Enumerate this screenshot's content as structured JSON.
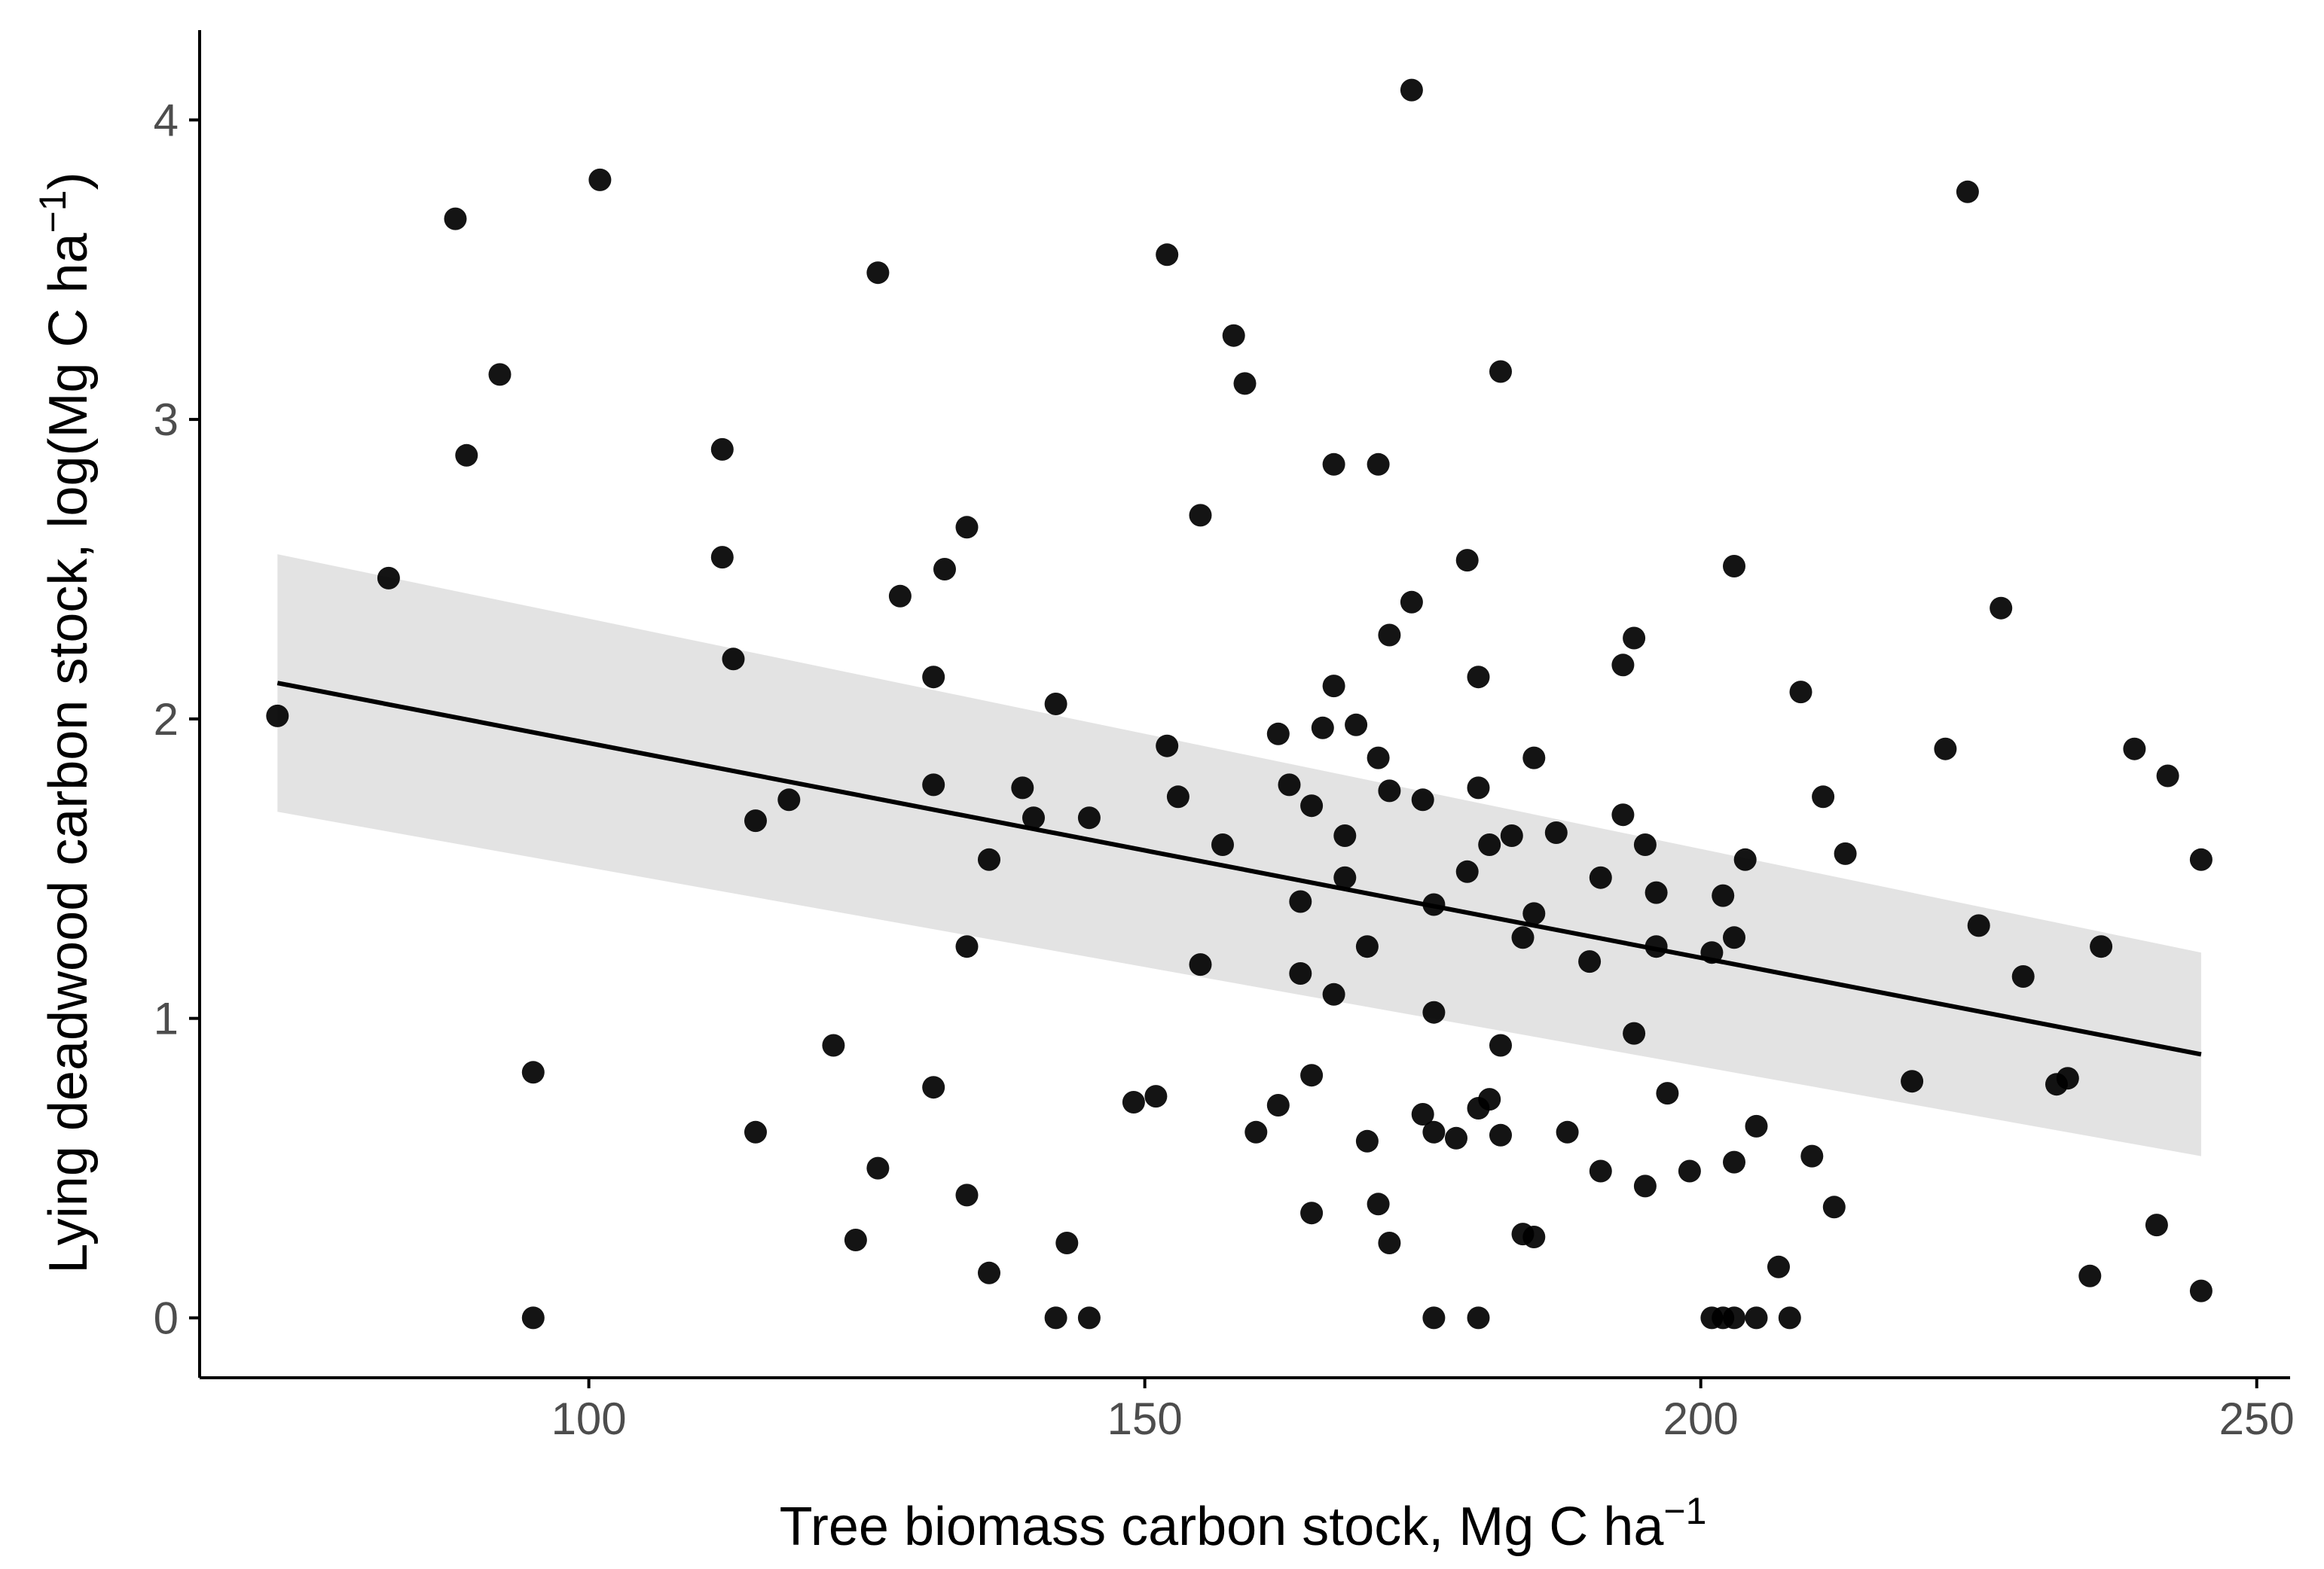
{
  "chart_data": {
    "type": "scatter",
    "title": "",
    "xlabel": "Tree biomass carbon stock, Mg C ha",
    "xlabel_sup": "−1",
    "ylabel": "Lying deadwood carbon stock, log(Mg C ha",
    "ylabel_sup": "−1",
    "ylabel_close": ")",
    "xlim": [
      65,
      253
    ],
    "ylim": [
      -0.2,
      4.3
    ],
    "xticks": [
      100,
      150,
      200,
      250
    ],
    "xtick_labels": [
      "100",
      "150",
      "200",
      "250"
    ],
    "yticks": [
      0,
      1,
      2,
      3,
      4
    ],
    "ytick_labels": [
      "0",
      "1",
      "2",
      "3",
      "4"
    ],
    "grid": false,
    "colors": {
      "points": "#000000",
      "line": "#000000",
      "band": "#d9d9d9",
      "axis": "#000000",
      "tick_text": "#4d4d4d"
    },
    "fit": {
      "x": [
        72,
        245
      ],
      "y": [
        2.12,
        0.88
      ],
      "ci_lower": [
        1.69,
        0.54
      ],
      "ci_upper": [
        2.55,
        1.22
      ]
    },
    "points": [
      [
        72,
        2.01
      ],
      [
        82,
        2.47
      ],
      [
        88,
        3.67
      ],
      [
        89,
        2.88
      ],
      [
        92,
        3.15
      ],
      [
        95,
        0.82
      ],
      [
        95,
        0.0
      ],
      [
        101,
        3.8
      ],
      [
        112,
        2.9
      ],
      [
        112,
        2.54
      ],
      [
        113,
        2.2
      ],
      [
        115,
        1.66
      ],
      [
        115,
        0.62
      ],
      [
        118,
        1.73
      ],
      [
        122,
        0.91
      ],
      [
        124,
        0.26
      ],
      [
        126,
        3.49
      ],
      [
        126,
        0.5
      ],
      [
        128,
        2.41
      ],
      [
        131,
        2.14
      ],
      [
        131,
        0.77
      ],
      [
        131,
        1.78
      ],
      [
        132,
        2.5
      ],
      [
        134,
        2.64
      ],
      [
        134,
        1.24
      ],
      [
        134,
        0.41
      ],
      [
        136,
        1.53
      ],
      [
        136,
        0.15
      ],
      [
        139,
        1.77
      ],
      [
        140,
        1.67
      ],
      [
        142,
        2.05
      ],
      [
        142,
        0.0
      ],
      [
        143,
        0.25
      ],
      [
        145,
        1.67
      ],
      [
        145,
        0.0
      ],
      [
        149,
        0.72
      ],
      [
        151,
        0.74
      ],
      [
        152,
        1.91
      ],
      [
        152,
        3.55
      ],
      [
        153,
        1.74
      ],
      [
        155,
        2.68
      ],
      [
        155,
        1.18
      ],
      [
        157,
        1.58
      ],
      [
        158,
        3.28
      ],
      [
        159,
        3.12
      ],
      [
        160,
        0.62
      ],
      [
        162,
        1.95
      ],
      [
        162,
        0.71
      ],
      [
        163,
        1.78
      ],
      [
        164,
        1.39
      ],
      [
        164,
        1.15
      ],
      [
        165,
        1.71
      ],
      [
        165,
        0.81
      ],
      [
        165,
        0.35
      ],
      [
        166,
        1.97
      ],
      [
        167,
        2.11
      ],
      [
        167,
        1.08
      ],
      [
        167,
        2.85
      ],
      [
        168,
        1.47
      ],
      [
        168,
        1.61
      ],
      [
        169,
        1.98
      ],
      [
        170,
        0.59
      ],
      [
        170,
        1.24
      ],
      [
        171,
        2.85
      ],
      [
        171,
        1.87
      ],
      [
        171,
        0.38
      ],
      [
        172,
        1.76
      ],
      [
        172,
        2.28
      ],
      [
        172,
        0.25
      ],
      [
        174,
        4.1
      ],
      [
        174,
        2.39
      ],
      [
        175,
        0.68
      ],
      [
        175,
        1.73
      ],
      [
        176,
        1.38
      ],
      [
        176,
        1.02
      ],
      [
        176,
        0.0
      ],
      [
        176,
        0.62
      ],
      [
        178,
        0.6
      ],
      [
        179,
        1.49
      ],
      [
        179,
        2.53
      ],
      [
        180,
        2.14
      ],
      [
        180,
        1.77
      ],
      [
        180,
        0.0
      ],
      [
        180,
        0.7
      ],
      [
        181,
        0.73
      ],
      [
        181,
        1.58
      ],
      [
        182,
        3.16
      ],
      [
        182,
        0.91
      ],
      [
        182,
        0.61
      ],
      [
        183,
        1.61
      ],
      [
        184,
        1.27
      ],
      [
        184,
        0.28
      ],
      [
        185,
        1.35
      ],
      [
        185,
        1.87
      ],
      [
        185,
        0.27
      ],
      [
        187,
        1.62
      ],
      [
        188,
        0.62
      ],
      [
        190,
        1.19
      ],
      [
        191,
        1.47
      ],
      [
        191,
        0.49
      ],
      [
        193,
        1.68
      ],
      [
        193,
        2.18
      ],
      [
        194,
        0.95
      ],
      [
        194,
        2.27
      ],
      [
        195,
        1.58
      ],
      [
        195,
        0.44
      ],
      [
        196,
        1.42
      ],
      [
        196,
        1.24
      ],
      [
        197,
        0.75
      ],
      [
        199,
        0.49
      ],
      [
        201,
        0.0
      ],
      [
        201,
        1.22
      ],
      [
        202,
        0.0
      ],
      [
        202,
        1.41
      ],
      [
        203,
        2.51
      ],
      [
        203,
        1.27
      ],
      [
        203,
        0.0
      ],
      [
        203,
        0.52
      ],
      [
        204,
        1.53
      ],
      [
        205,
        0.64
      ],
      [
        205,
        0.0
      ],
      [
        207,
        0.17
      ],
      [
        208,
        0.0
      ],
      [
        209,
        2.09
      ],
      [
        210,
        0.54
      ],
      [
        211,
        1.74
      ],
      [
        212,
        0.37
      ],
      [
        213,
        1.55
      ],
      [
        219,
        0.79
      ],
      [
        222,
        1.9
      ],
      [
        224,
        3.76
      ],
      [
        225,
        1.31
      ],
      [
        227,
        2.37
      ],
      [
        229,
        1.14
      ],
      [
        232,
        0.78
      ],
      [
        233,
        0.8
      ],
      [
        235,
        0.14
      ],
      [
        236,
        1.24
      ],
      [
        239,
        1.9
      ],
      [
        241,
        0.31
      ],
      [
        242,
        1.81
      ],
      [
        245,
        1.53
      ],
      [
        245,
        0.09
      ]
    ]
  }
}
